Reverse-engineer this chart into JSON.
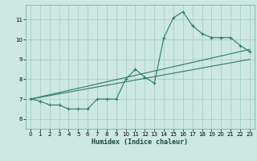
{
  "xlabel": "Humidex (Indice chaleur)",
  "bg_color": "#cce8e0",
  "line_color": "#2a7a6a",
  "xlim": [
    -0.5,
    23.5
  ],
  "ylim": [
    5.5,
    11.75
  ],
  "yticks": [
    6,
    7,
    8,
    9,
    10,
    11
  ],
  "xticks": [
    0,
    1,
    2,
    3,
    4,
    5,
    6,
    7,
    8,
    9,
    10,
    11,
    12,
    13,
    14,
    15,
    16,
    17,
    18,
    19,
    20,
    21,
    22,
    23
  ],
  "series1_x": [
    0,
    1,
    2,
    3,
    4,
    5,
    6,
    7,
    8,
    9,
    10,
    11,
    12,
    13,
    14,
    15,
    16,
    17,
    18,
    19,
    20,
    21,
    22,
    23
  ],
  "series1_y": [
    7.0,
    6.9,
    6.7,
    6.7,
    6.5,
    6.5,
    6.5,
    7.0,
    7.0,
    7.0,
    8.0,
    8.5,
    8.1,
    7.8,
    10.1,
    11.1,
    11.4,
    10.7,
    10.3,
    10.1,
    10.1,
    10.1,
    9.7,
    9.4
  ],
  "series2_x": [
    0,
    23
  ],
  "series2_y": [
    7.0,
    9.5
  ],
  "series3_x": [
    0,
    23
  ],
  "series3_y": [
    7.0,
    9.0
  ]
}
